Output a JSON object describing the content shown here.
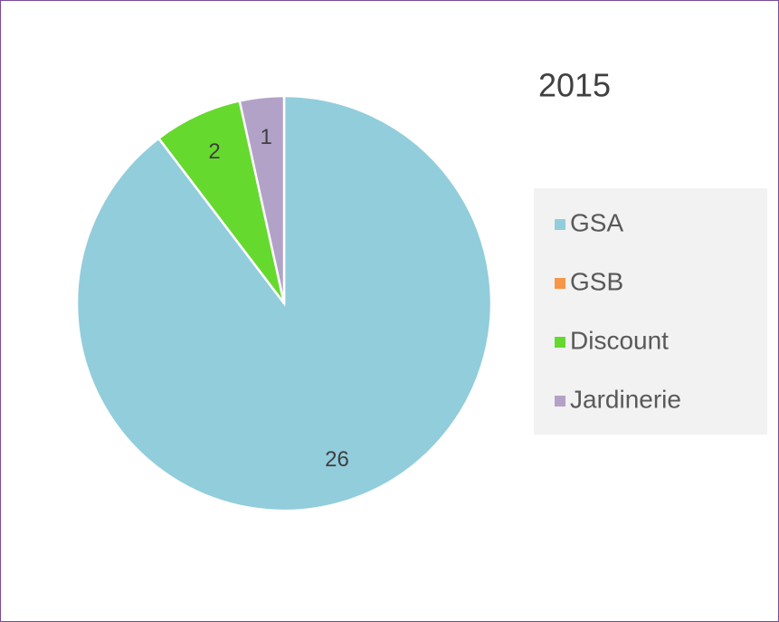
{
  "chart_data": {
    "type": "pie",
    "title": "2015",
    "categories": [
      "GSA",
      "GSB",
      "Discount",
      "Jardinerie"
    ],
    "values": [
      26,
      0,
      2,
      1
    ],
    "colors": [
      "#92cddc",
      "#f79646",
      "#66d92f",
      "#b3a2c7"
    ],
    "legend": "right"
  }
}
